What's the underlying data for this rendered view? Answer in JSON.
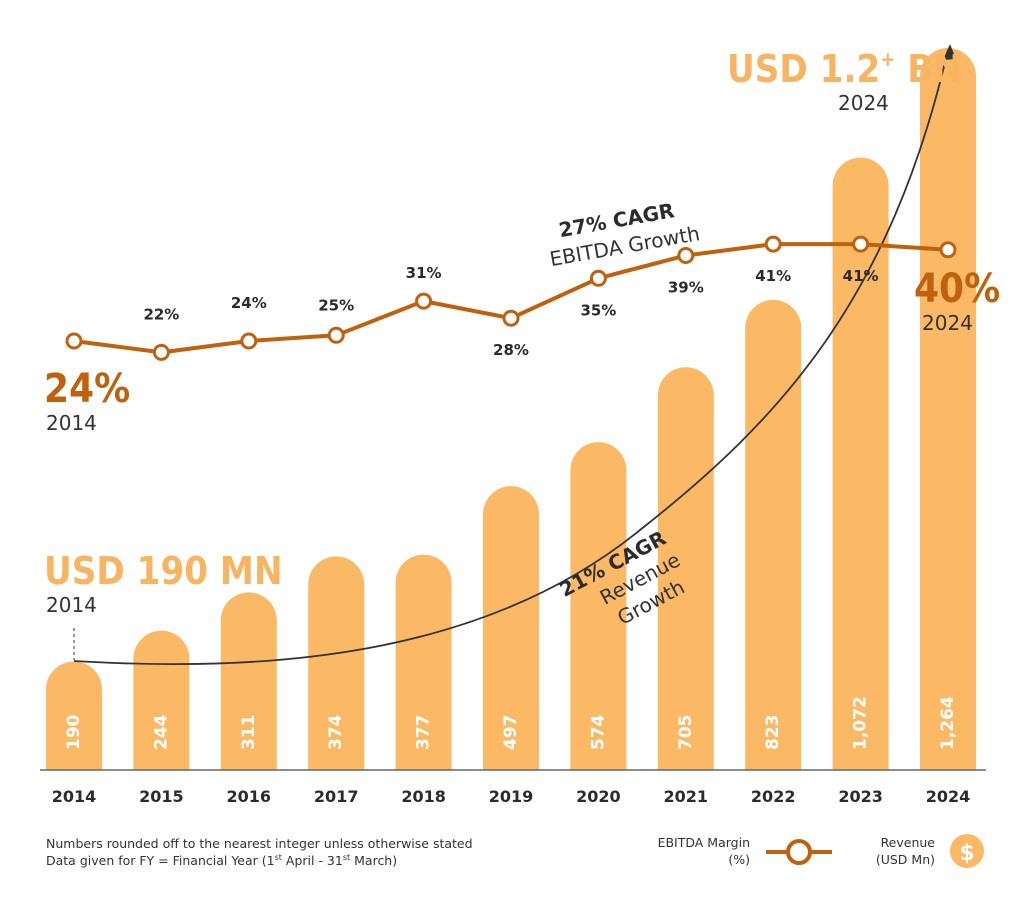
{
  "colors": {
    "bar": "#fbb966",
    "line": "#c0610e",
    "highlight_orange": "#c0610e",
    "callout_orange": "#f9b461",
    "text_dark": "#2b2b2b",
    "axis": "#666666"
  },
  "chart_data": {
    "type": "bar",
    "categories": [
      "2014",
      "2015",
      "2016",
      "2017",
      "2018",
      "2019",
      "2020",
      "2021",
      "2022",
      "2023",
      "2024"
    ],
    "series": [
      {
        "name": "Revenue (USD Mn)",
        "type": "bar",
        "values": [
          190,
          244,
          311,
          374,
          377,
          497,
          574,
          705,
          823,
          1072,
          1264
        ],
        "value_labels": [
          "190",
          "244",
          "311",
          "374",
          "377",
          "497",
          "574",
          "705",
          "823",
          "1,072",
          "1,264"
        ]
      },
      {
        "name": "EBITDA Margin (%)",
        "type": "line",
        "values": [
          24,
          22,
          24,
          25,
          31,
          28,
          35,
          39,
          41,
          41,
          40
        ],
        "value_labels": [
          "",
          "22%",
          "24%",
          "25%",
          "31%",
          "28%",
          "35%",
          "39%",
          "41%",
          "41%",
          ""
        ]
      }
    ],
    "annotations": {
      "start_margin": {
        "value": "24%",
        "year": "2014"
      },
      "end_margin": {
        "value": "40%",
        "year": "2024"
      },
      "start_revenue": {
        "value": "USD 190 MN",
        "year": "2014"
      },
      "end_revenue": {
        "value_main": "USD 1.2",
        "value_sup": "+",
        "value_suffix": " BN",
        "year": "2024"
      },
      "ebitda_cagr": {
        "value": "27% CAGR",
        "text": "EBITDA Growth"
      },
      "revenue_cagr": {
        "value": "21% CAGR",
        "line1": "Revenue",
        "line2": "Growth"
      }
    },
    "legend": {
      "ebitda_line1": "EBITDA Margin",
      "ebitda_line2": "(%)",
      "revenue_line1": "Revenue",
      "revenue_line2": "(USD Mn)",
      "revenue_icon": "dollar-icon"
    },
    "legend_position": "bottom-right",
    "grid": false
  },
  "footnotes": {
    "line1": "Numbers rounded off to the nearest integer unless otherwise stated",
    "line2_prefix": "Data given for FY = Financial Year (1",
    "line2_sup1": "st",
    "line2_mid": " April - 31",
    "line2_sup2": "st",
    "line2_suffix": " March)"
  }
}
